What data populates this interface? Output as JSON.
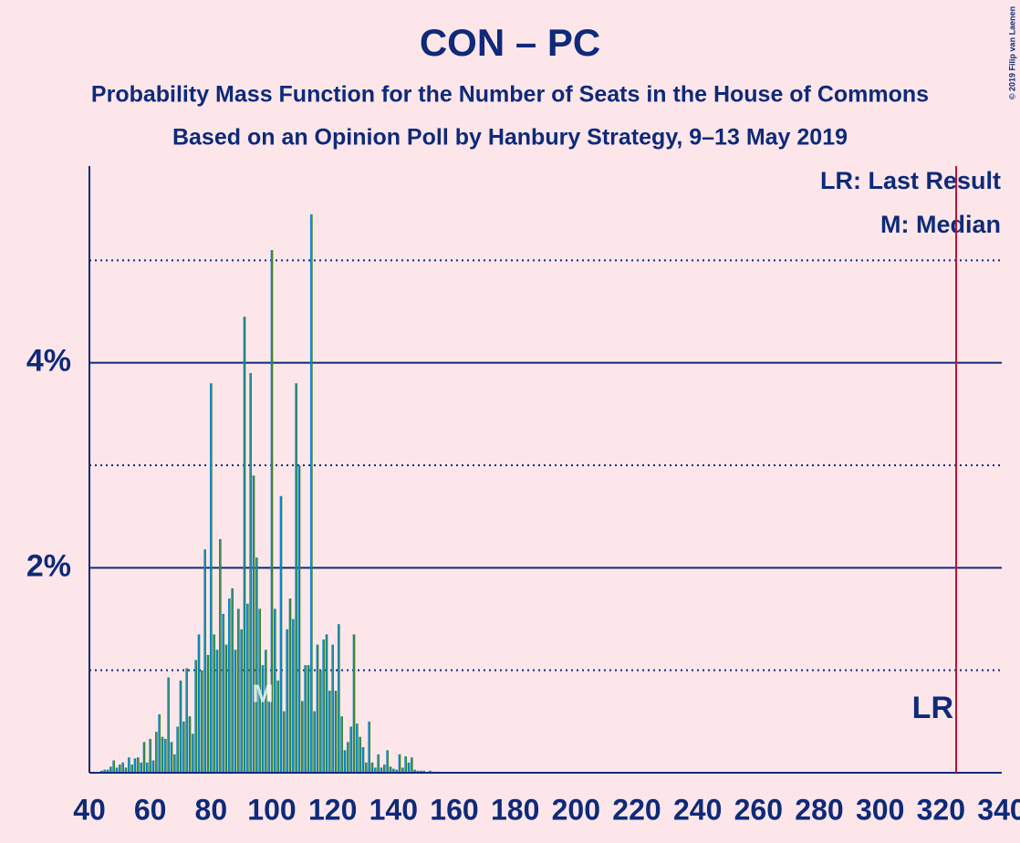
{
  "chart_data": {
    "type": "bar",
    "title": "CON – PC",
    "subtitle": "Probability Mass Function for the Number of Seats in the House of Commons",
    "subtitle2": "Based on an Opinion Poll by Hanbury Strategy, 9–13 May 2019",
    "copyright": "© 2019 Filip van Laenen",
    "legend": [
      "LR: Last Result",
      "M: Median"
    ],
    "bar_colors": [
      "#0087DC",
      "#3F8428"
    ],
    "x": [
      44,
      45,
      46,
      47,
      48,
      49,
      50,
      51,
      52,
      53,
      54,
      55,
      56,
      57,
      58,
      59,
      60,
      61,
      62,
      63,
      64,
      65,
      66,
      67,
      68,
      69,
      70,
      71,
      72,
      73,
      74,
      75,
      76,
      77,
      78,
      79,
      80,
      81,
      82,
      83,
      84,
      85,
      86,
      87,
      88,
      89,
      90,
      91,
      92,
      93,
      94,
      95,
      96,
      97,
      98,
      99,
      100,
      101,
      102,
      103,
      104,
      105,
      106,
      107,
      108,
      109,
      110,
      111,
      112,
      113,
      114,
      115,
      116,
      117,
      118,
      119,
      120,
      121,
      122,
      123,
      124,
      125,
      126,
      127,
      128,
      129,
      130,
      131,
      132,
      133,
      134,
      135,
      136,
      137,
      138,
      139,
      140,
      141,
      142,
      143,
      144,
      145,
      146,
      147,
      148,
      149,
      150,
      151,
      152,
      153,
      154,
      155
    ],
    "values": [
      0.02,
      0.03,
      0.03,
      0.06,
      0.12,
      0.05,
      0.08,
      0.1,
      0.05,
      0.15,
      0.08,
      0.14,
      0.15,
      0.1,
      0.3,
      0.1,
      0.33,
      0.12,
      0.4,
      0.57,
      0.35,
      0.33,
      0.93,
      0.3,
      0.18,
      0.45,
      0.9,
      0.5,
      1.02,
      0.55,
      0.38,
      1.1,
      1.35,
      1.0,
      2.18,
      1.15,
      3.8,
      1.35,
      1.2,
      2.28,
      1.55,
      1.25,
      1.7,
      1.8,
      1.2,
      1.6,
      1.4,
      4.45,
      1.65,
      3.9,
      2.9,
      2.1,
      1.6,
      1.05,
      1.2,
      0.7,
      5.1,
      1.6,
      0.9,
      2.7,
      0.6,
      1.4,
      1.7,
      1.5,
      3.8,
      3.0,
      0.7,
      1.05,
      1.05,
      5.45,
      0.6,
      1.25,
      1.0,
      1.3,
      1.35,
      0.8,
      1.25,
      0.8,
      1.45,
      0.55,
      0.22,
      0.3,
      0.45,
      1.35,
      0.48,
      0.35,
      0.25,
      0.1,
      0.5,
      0.1,
      0.05,
      0.18,
      0.05,
      0.08,
      0.22,
      0.06,
      0.04,
      0.03,
      0.18,
      0.05,
      0.16,
      0.1,
      0.15,
      0.03,
      0.02,
      0.02,
      0.02,
      0.01,
      0.02,
      0.01,
      0.01,
      0.01
    ],
    "xlim": [
      40,
      340
    ],
    "xticks": [
      40,
      60,
      80,
      100,
      120,
      140,
      160,
      180,
      200,
      220,
      240,
      260,
      280,
      300,
      320,
      340
    ],
    "ylim": [
      0,
      5.92
    ],
    "yticks": [
      {
        "value": 2,
        "label": "2%"
      },
      {
        "value": 4,
        "label": "4%"
      }
    ],
    "minor_gridlines": [
      1,
      3,
      5
    ],
    "median": 97,
    "median_label": "M",
    "last_result": 325,
    "last_result_label": "LR"
  }
}
